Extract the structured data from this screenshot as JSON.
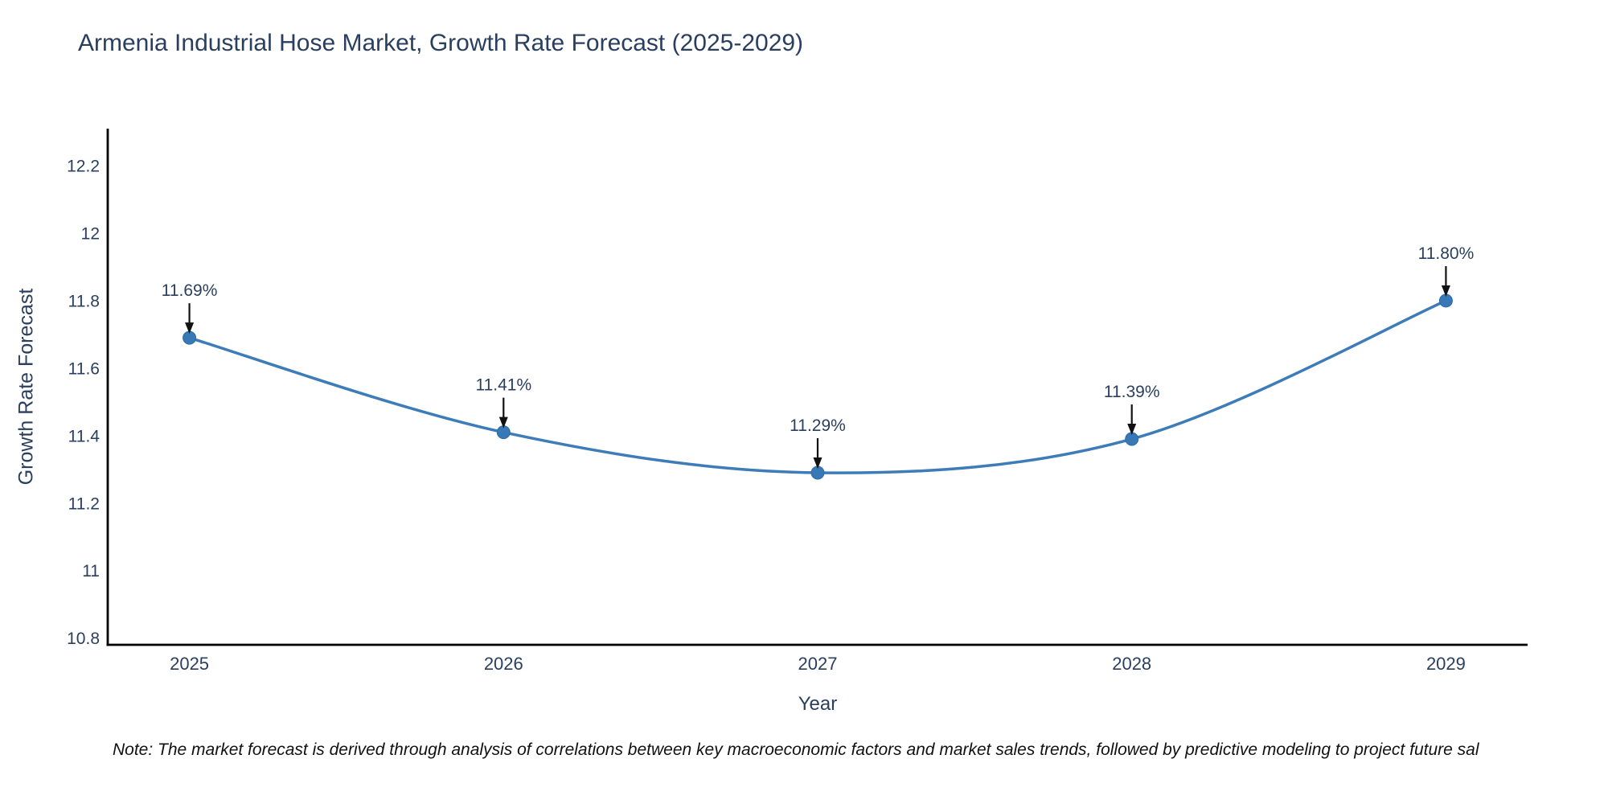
{
  "colors": {
    "background": "#ffffff",
    "line": "#3d7cb8",
    "marker_fill": "#3878b4",
    "marker_edge": "#2d6ca8",
    "axis_line": "#000000",
    "tick_text": "#2a3f5f",
    "title_text": "#2a3f5f",
    "annotation_text": "#2a3f5f",
    "arrow": "#111111",
    "note_text": "#111111"
  },
  "chart_data": {
    "type": "line",
    "title": "Armenia Industrial Hose Market, Growth Rate Forecast (2025-2029)",
    "xlabel": "Year",
    "ylabel": "Growth Rate Forecast",
    "line_shape": "spline",
    "markers": true,
    "grid": false,
    "legend_position": "none",
    "x": [
      2025,
      2026,
      2027,
      2028,
      2029
    ],
    "series": [
      {
        "name": "Growth Rate Forecast",
        "values": [
          11.69,
          11.41,
          11.29,
          11.39,
          11.8
        ],
        "point_labels": [
          "11.69%",
          "11.41%",
          "11.29%",
          "11.39%",
          "11.80%"
        ]
      }
    ],
    "xlim": [
      2024.74,
      2029.26
    ],
    "ylim": [
      10.78,
      12.31
    ],
    "xticks": [
      2025,
      2026,
      2027,
      2028,
      2029
    ],
    "xtick_labels": [
      "2025",
      "2026",
      "2027",
      "2028",
      "2029"
    ],
    "yticks": [
      10.8,
      11,
      11.2,
      11.4,
      11.6,
      11.8,
      12,
      12.2
    ],
    "ytick_labels": [
      "10.8",
      "11",
      "11.2",
      "11.4",
      "11.6",
      "11.8",
      "12",
      "12.2"
    ]
  },
  "note": {
    "text": "Note: The market forecast is derived through analysis of correlations between key macroeconomic factors and market sales trends, followed by predictive modeling to project future sal"
  }
}
